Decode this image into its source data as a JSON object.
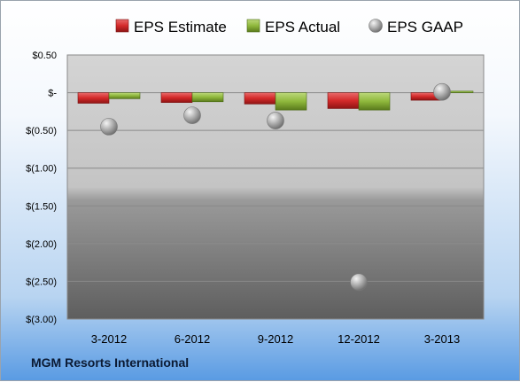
{
  "company": "MGM Resorts International",
  "chart_data": {
    "type": "bar",
    "title": "",
    "xlabel": "",
    "ylabel": "",
    "categories": [
      "3-2012",
      "6-2012",
      "9-2012",
      "12-2012",
      "3-2013"
    ],
    "ylim": [
      -3.0,
      0.5
    ],
    "yticks": [
      0.5,
      0,
      -0.5,
      -1.0,
      -1.5,
      -2.0,
      -2.5,
      -3.0
    ],
    "ytick_labels": [
      "$0.50",
      "$-",
      "$(0.50)",
      "$(1.00)",
      "$(1.50)",
      "$(2.00)",
      "$(2.50)",
      "$(3.00)"
    ],
    "grid": true,
    "legend_position": "top",
    "series": [
      {
        "name": "EPS Estimate",
        "kind": "bar",
        "color": "#d42a2a",
        "values": [
          -0.14,
          -0.13,
          -0.15,
          -0.21,
          -0.1
        ]
      },
      {
        "name": "EPS Actual",
        "kind": "bar",
        "color": "#8fb83c",
        "values": [
          -0.08,
          -0.12,
          -0.23,
          -0.23,
          0.02
        ]
      },
      {
        "name": "EPS GAAP",
        "kind": "scatter",
        "color": "#a8a8a8",
        "values": [
          -0.45,
          -0.3,
          -0.37,
          -2.51,
          0.01
        ]
      }
    ]
  }
}
